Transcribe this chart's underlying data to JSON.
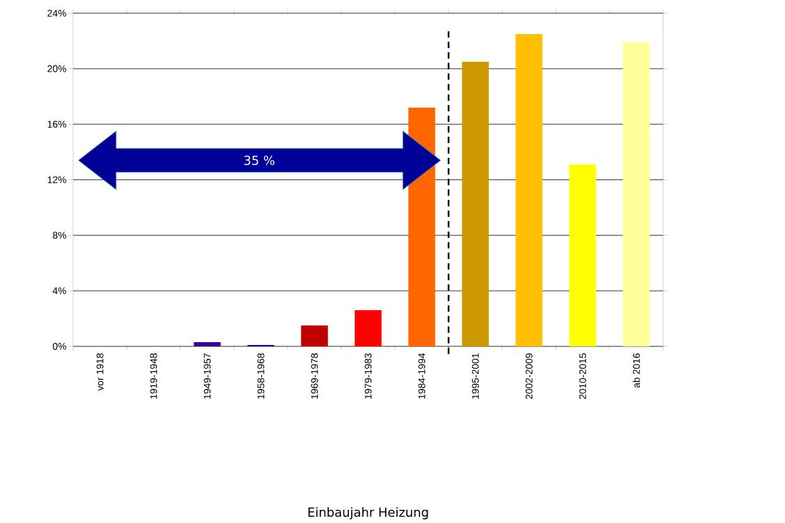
{
  "chart_data": {
    "type": "bar",
    "categories": [
      "vor 1918",
      "1919-1948",
      "1949-1957",
      "1958-1968",
      "1969-1978",
      "1979-1983",
      "1984-1994",
      "1995-2001",
      "2002-2009",
      "2010-2015",
      "ab 2016"
    ],
    "values": [
      0,
      0,
      0.3,
      0.1,
      1.5,
      2.6,
      17.2,
      20.5,
      22.5,
      13.1,
      21.9
    ],
    "colors": [
      "#000066",
      "#330066",
      "#330099",
      "#330099",
      "#c00000",
      "#ff0000",
      "#ff6600",
      "#cc9900",
      "#ffc000",
      "#ffff00",
      "#ffff99"
    ],
    "ylim": [
      0,
      24
    ],
    "yticks": [
      {
        "value": 0,
        "label": "0%"
      },
      {
        "value": 4,
        "label": "4%"
      },
      {
        "value": 8,
        "label": "8%"
      },
      {
        "value": 12,
        "label": "12%"
      },
      {
        "value": 16,
        "label": "16%"
      },
      {
        "value": 20,
        "label": "20%"
      },
      {
        "value": 24,
        "label": "24%"
      }
    ],
    "grid": "y",
    "annotations": [
      "35 %",
      "Einbaujahr Heizung"
    ]
  }
}
